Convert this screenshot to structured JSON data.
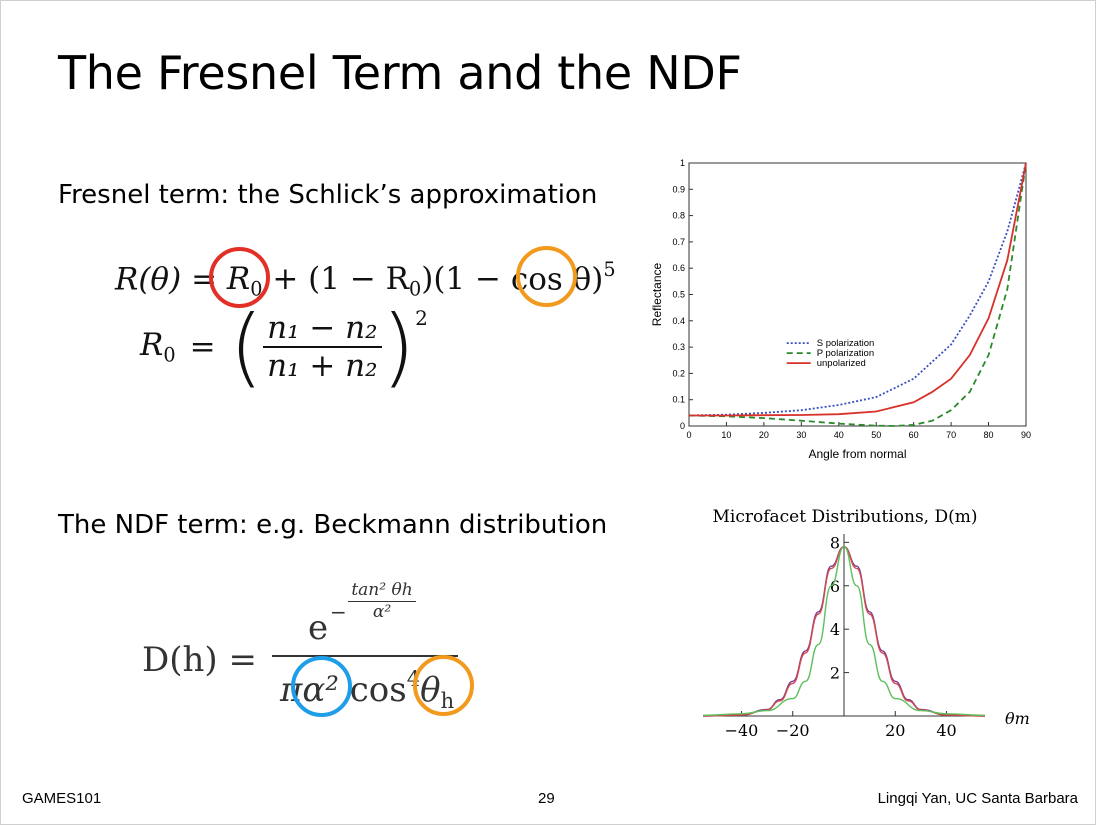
{
  "title": "The Fresnel Term and the NDF",
  "fresnel_heading": "Fresnel term: the Schlick’s approximation",
  "ndf_heading": "The NDF term: e.g. Beckmann distribution",
  "footer": {
    "left": "GAMES101",
    "center": "29",
    "right": "Lingqi Yan, UC Santa Barbara"
  },
  "highlight_colors": {
    "red": "#e33027",
    "orange": "#f29a1e",
    "blue": "#1e9ee8"
  },
  "formula_fresnel": {
    "lhs": "R(θ)",
    "eq": "=",
    "r0": "R",
    "r0_sub": "0",
    "mid": "+ (1 − R",
    "mid_sub": "0",
    "mid2": ")(1 − ",
    "cos": "cos θ",
    "close": ")",
    "exp": "5"
  },
  "formula_r0": {
    "lhs": "R",
    "lhs_sub": "0",
    "eq": "=",
    "num": "n₁ − n₂",
    "den": "n₁ + n₂",
    "exp": "2"
  },
  "formula_ndf": {
    "lhs": "D(h) =",
    "e": "e",
    "exp_minus": "−",
    "exp_num": "tan² θh",
    "exp_den": "α²",
    "den_pi": "π",
    "den_alpha": "α²",
    "den_cos": "cos",
    "den_cos_exp": "4",
    "den_theta": "θ",
    "den_theta_sub": "h"
  },
  "chart_data": [
    {
      "type": "line",
      "title": "",
      "xlabel": "Angle from normal",
      "ylabel": "Reflectance",
      "xlim": [
        0,
        90
      ],
      "ylim": [
        0,
        1
      ],
      "x_ticks": [
        "0",
        "10",
        "20",
        "30",
        "40",
        "50",
        "60",
        "70",
        "80",
        "90"
      ],
      "y_ticks": [
        "0",
        "0.1",
        "0.2",
        "0.3",
        "0.4",
        "0.5",
        "0.6",
        "0.7",
        "0.8",
        "0.9",
        "1"
      ],
      "legend": "center-right",
      "series": [
        {
          "name": "S polarization",
          "style": "dotted",
          "color": "#3a4fc0",
          "x": [
            0,
            10,
            20,
            30,
            40,
            50,
            60,
            70,
            75,
            80,
            85,
            90
          ],
          "y": [
            0.04,
            0.043,
            0.05,
            0.06,
            0.08,
            0.11,
            0.18,
            0.31,
            0.42,
            0.55,
            0.74,
            1.0
          ]
        },
        {
          "name": "P polarization",
          "style": "dashed",
          "color": "#2a8a2a",
          "x": [
            0,
            10,
            20,
            30,
            40,
            50,
            55,
            60,
            65,
            70,
            75,
            80,
            85,
            90
          ],
          "y": [
            0.04,
            0.037,
            0.03,
            0.02,
            0.009,
            0.001,
            0.0,
            0.004,
            0.02,
            0.06,
            0.13,
            0.27,
            0.52,
            1.0
          ]
        },
        {
          "name": "unpolarized",
          "style": "solid",
          "color": "#d8312a",
          "x": [
            0,
            10,
            20,
            30,
            40,
            50,
            60,
            65,
            70,
            75,
            80,
            85,
            90
          ],
          "y": [
            0.04,
            0.04,
            0.041,
            0.042,
            0.045,
            0.055,
            0.09,
            0.13,
            0.18,
            0.27,
            0.41,
            0.63,
            1.0
          ]
        }
      ]
    },
    {
      "type": "line",
      "title": "Microfacet Distributions, D(m)",
      "xlabel": "θm",
      "xlim": [
        -55,
        55
      ],
      "ylim": [
        0,
        8.2
      ],
      "x_ticks": [
        "−40",
        "−20",
        "20",
        "40"
      ],
      "x_tick_values": [
        -40,
        -20,
        20,
        40
      ],
      "y_ticks": [
        "2",
        "4",
        "6",
        "8"
      ],
      "y_tick_values": [
        2,
        4,
        6,
        8
      ],
      "series": [
        {
          "color": "#7a3a9a",
          "x": [
            -55,
            -40,
            -30,
            -25,
            -20,
            -15,
            -10,
            -5,
            0,
            5,
            10,
            15,
            20,
            25,
            30,
            40,
            55
          ],
          "y": [
            0,
            0.05,
            0.3,
            0.75,
            1.6,
            3.0,
            4.8,
            6.9,
            7.8,
            6.9,
            4.8,
            3.0,
            1.6,
            0.75,
            0.3,
            0.05,
            0
          ]
        },
        {
          "color": "#d24a4a",
          "x": [
            -55,
            -40,
            -30,
            -25,
            -20,
            -15,
            -10,
            -5,
            0,
            5,
            10,
            15,
            20,
            25,
            30,
            40,
            55
          ],
          "y": [
            0,
            0.04,
            0.28,
            0.7,
            1.5,
            2.9,
            4.7,
            6.8,
            7.8,
            6.8,
            4.7,
            2.9,
            1.5,
            0.7,
            0.28,
            0.04,
            0
          ]
        },
        {
          "color": "#5bbf5b",
          "x": [
            -55,
            -40,
            -30,
            -20,
            -15,
            -10,
            -5,
            0,
            5,
            10,
            15,
            20,
            30,
            40,
            55
          ],
          "y": [
            0.03,
            0.1,
            0.25,
            0.8,
            1.6,
            3.3,
            6.0,
            7.8,
            6.0,
            3.3,
            1.6,
            0.8,
            0.25,
            0.1,
            0.03
          ]
        }
      ]
    }
  ]
}
